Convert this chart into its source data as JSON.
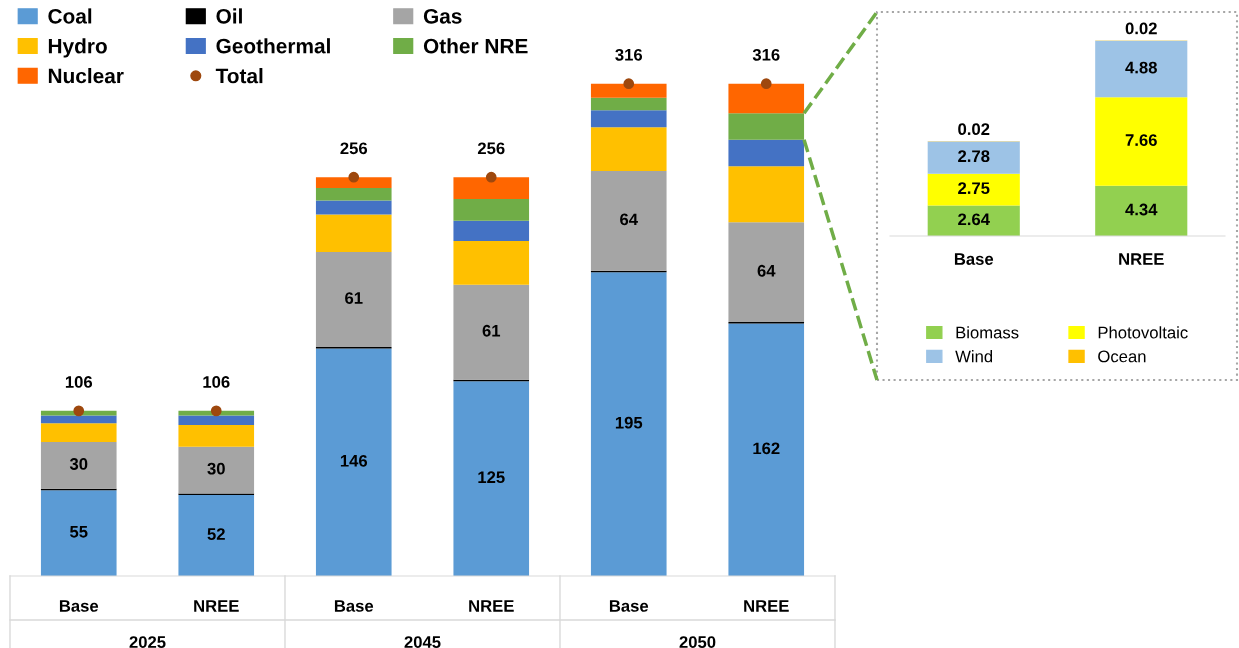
{
  "chart_data": [
    {
      "type": "bar",
      "stacked": true,
      "legend": "top left",
      "categories": [
        "Base",
        "NREE",
        "Base",
        "NREE",
        "Base",
        "NREE"
      ],
      "annotations": [
        "2025",
        "2045",
        "2050"
      ],
      "series": [
        {
          "name": "Coal",
          "color": "#5b9bd5",
          "values": [
            55,
            52,
            146,
            125,
            195,
            162
          ],
          "value_labels": [
            "55",
            "52",
            "146",
            "125",
            "195",
            "162"
          ]
        },
        {
          "name": "Oil",
          "color": "#000000",
          "values": [
            1,
            1,
            1,
            1,
            1,
            1
          ]
        },
        {
          "name": "Gas",
          "color": "#a5a5a5",
          "values": [
            30,
            30,
            61,
            61,
            64,
            64
          ],
          "value_labels": [
            "30",
            "30",
            "61",
            "61",
            "64",
            "64"
          ]
        },
        {
          "name": "Hydro",
          "color": "#ffc000",
          "values": [
            12,
            14,
            24,
            28,
            28,
            36
          ]
        },
        {
          "name": "Geothermal",
          "color": "#4472c4",
          "values": [
            5,
            6,
            9,
            13,
            11,
            17
          ]
        },
        {
          "name": "Other NRE",
          "color": "#70ad47",
          "values": [
            3,
            3,
            8,
            14,
            8,
            17
          ]
        },
        {
          "name": "Nuclear",
          "color": "#ff6600",
          "values": [
            0,
            0,
            7,
            14,
            9,
            19
          ]
        },
        {
          "name": "Total",
          "type": "scatter",
          "color": "#9e480e",
          "values": [
            106,
            106,
            256,
            256,
            316,
            316
          ],
          "value_labels": [
            "106",
            "106",
            "256",
            "256",
            "316",
            "316"
          ]
        }
      ]
    },
    {
      "type": "bar",
      "stacked": true,
      "legend": "bottom",
      "data_labels": true,
      "categories": [
        "Base",
        "NREE"
      ],
      "series": [
        {
          "name": "Biomass",
          "color": "#92d050",
          "values": [
            2.64,
            4.34
          ]
        },
        {
          "name": "Photovoltaic",
          "color": "#ffff00",
          "values": [
            2.75,
            7.66
          ]
        },
        {
          "name": "Wind",
          "color": "#9dc3e6",
          "values": [
            2.78,
            4.88
          ]
        },
        {
          "name": "Ocean",
          "color": "#ffc000",
          "values": [
            0.02,
            0.02
          ]
        }
      ]
    }
  ]
}
